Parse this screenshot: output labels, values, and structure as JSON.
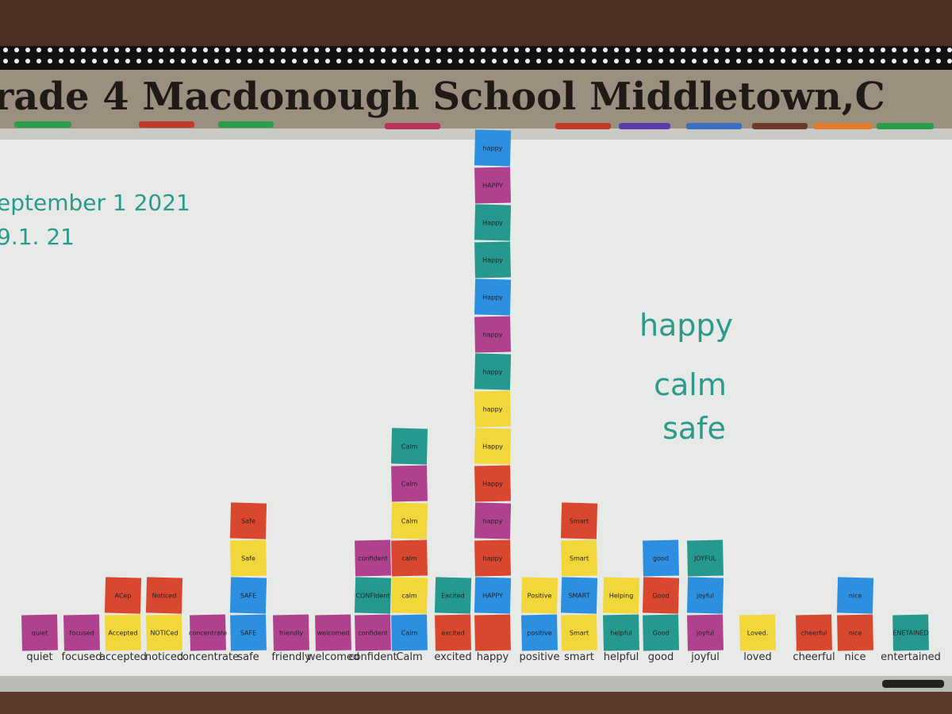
{
  "banner": {
    "title": "rade 4 Macdonough School Middletown,C"
  },
  "date": [
    "eptember 1   2021",
    "9.1. 21"
  ],
  "summary": [
    "happy",
    "calm",
    "safe"
  ],
  "columns": [
    {
      "label": "quiet",
      "notes": [
        {
          "text": "quiet",
          "color": "#b0418f"
        }
      ]
    },
    {
      "label": "focused",
      "notes": [
        {
          "text": "focused",
          "color": "#b0418f"
        }
      ]
    },
    {
      "label": "accepted",
      "notes": [
        {
          "text": "Accepted",
          "color": "#f2d73a"
        },
        {
          "text": "ACep",
          "color": "#d9472f"
        }
      ]
    },
    {
      "label": "noticed",
      "notes": [
        {
          "text": "NOTICed",
          "color": "#f2d73a"
        },
        {
          "text": "Noticed",
          "color": "#d9472f"
        }
      ]
    },
    {
      "label": "concentrate",
      "notes": [
        {
          "text": "concentrate",
          "color": "#b0418f"
        }
      ]
    },
    {
      "label": "safe",
      "notes": [
        {
          "text": "SAFE",
          "color": "#2c8fe0"
        },
        {
          "text": "SAFE",
          "color": "#2c8fe0"
        },
        {
          "text": "Safe",
          "color": "#f2d73a"
        },
        {
          "text": "Safe",
          "color": "#d9472f"
        }
      ]
    },
    {
      "label": "friendly",
      "notes": [
        {
          "text": "friendly",
          "color": "#b0418f"
        }
      ]
    },
    {
      "label": "welcomed",
      "notes": [
        {
          "text": "welcomed",
          "color": "#b0418f"
        }
      ]
    },
    {
      "label": "confident",
      "notes": [
        {
          "text": "confident",
          "color": "#b0418f"
        },
        {
          "text": "CONFIdent",
          "color": "#25998f"
        },
        {
          "text": "confident",
          "color": "#b0418f"
        }
      ]
    },
    {
      "label": "Calm",
      "notes": [
        {
          "text": "Calm",
          "color": "#2c8fe0"
        },
        {
          "text": "calm",
          "color": "#f2d73a"
        },
        {
          "text": "calm",
          "color": "#d9472f"
        },
        {
          "text": "Calm",
          "color": "#f2d73a"
        },
        {
          "text": "Calm",
          "color": "#b0418f"
        },
        {
          "text": "Calm",
          "color": "#25998f"
        }
      ]
    },
    {
      "label": "excited",
      "notes": [
        {
          "text": "excited",
          "color": "#d9472f"
        },
        {
          "text": "Excited",
          "color": "#25998f"
        }
      ]
    },
    {
      "label": "happy",
      "notes": [
        {
          "text": "",
          "color": "#d9472f"
        },
        {
          "text": "HAPPY",
          "color": "#2c8fe0"
        },
        {
          "text": "happy",
          "color": "#d9472f"
        },
        {
          "text": "happy",
          "color": "#b0418f"
        },
        {
          "text": "Happy",
          "color": "#d9472f"
        },
        {
          "text": "Happy",
          "color": "#f2d73a"
        },
        {
          "text": "happy",
          "color": "#f2d73a"
        },
        {
          "text": "happy",
          "color": "#25998f"
        },
        {
          "text": "happy",
          "color": "#b0418f"
        },
        {
          "text": "Happy",
          "color": "#2c8fe0"
        },
        {
          "text": "Happy",
          "color": "#25998f"
        },
        {
          "text": "Happy",
          "color": "#25998f"
        },
        {
          "text": "HAPPY",
          "color": "#b0418f"
        },
        {
          "text": "happy",
          "color": "#2c8fe0"
        }
      ]
    },
    {
      "label": "positive",
      "notes": [
        {
          "text": "positive",
          "color": "#2c8fe0"
        },
        {
          "text": "Positive",
          "color": "#f2d73a"
        }
      ]
    },
    {
      "label": "smart",
      "notes": [
        {
          "text": "Smart",
          "color": "#f2d73a"
        },
        {
          "text": "SMART",
          "color": "#2c8fe0"
        },
        {
          "text": "Smart",
          "color": "#f2d73a"
        },
        {
          "text": "Smart",
          "color": "#d9472f"
        }
      ]
    },
    {
      "label": "helpful",
      "notes": [
        {
          "text": "helpful",
          "color": "#25998f"
        },
        {
          "text": "Helping",
          "color": "#f2d73a"
        }
      ]
    },
    {
      "label": "good",
      "notes": [
        {
          "text": "Good",
          "color": "#25998f"
        },
        {
          "text": "Good",
          "color": "#d9472f"
        },
        {
          "text": "good",
          "color": "#2c8fe0"
        }
      ]
    },
    {
      "label": "joyful",
      "notes": [
        {
          "text": "joyful",
          "color": "#b0418f"
        },
        {
          "text": "joyful",
          "color": "#2c8fe0"
        },
        {
          "text": "JOYFUL",
          "color": "#25998f"
        }
      ]
    },
    {
      "label": "loved",
      "notes": [
        {
          "text": "Loved.",
          "color": "#f2d73a"
        }
      ]
    },
    {
      "label": "cheerful",
      "notes": [
        {
          "text": "cheerful",
          "color": "#d9472f"
        }
      ]
    },
    {
      "label": "nice",
      "notes": [
        {
          "text": "nice",
          "color": "#d9472f"
        },
        {
          "text": "nice",
          "color": "#2c8fe0"
        }
      ]
    },
    {
      "label": "entertained",
      "notes": [
        {
          "text": "ENETAINED",
          "color": "#25998f"
        }
      ]
    }
  ]
}
